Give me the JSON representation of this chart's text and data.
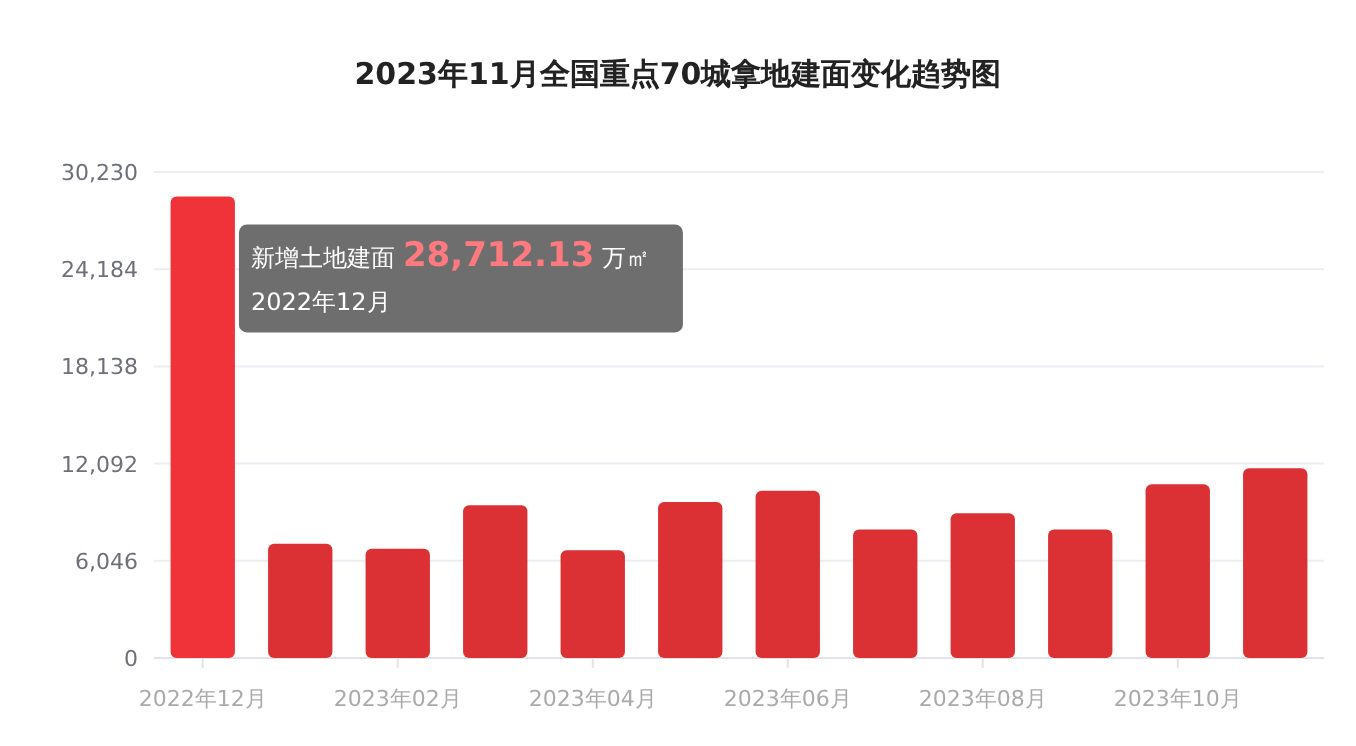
{
  "chart_data": {
    "type": "bar",
    "title": "2023年11月全国重点70城拿地建面变化趋势图",
    "categories": [
      "2022年12月",
      null,
      "2023年02月",
      null,
      "2023年04月",
      null,
      "2023年06月",
      null,
      "2023年08月",
      null,
      "2023年10月",
      null
    ],
    "values": [
      28712.13,
      7100,
      6800,
      9500,
      6700,
      9700,
      10400,
      8000,
      9000,
      8000,
      10800,
      11800
    ],
    "colors": [
      "#ef3338",
      "#db3134",
      "#db3134",
      "#db3134",
      "#db3134",
      "#db3134",
      "#db3134",
      "#db3134",
      "#db3134",
      "#db3134",
      "#db3134",
      "#db3134"
    ],
    "ylim": [
      0,
      30230
    ],
    "yticks": [
      {
        "value": 0,
        "label": "0"
      },
      {
        "value": 6046,
        "label": "6,046"
      },
      {
        "value": 12092,
        "label": "12,092"
      },
      {
        "value": 18138,
        "label": "18,138"
      },
      {
        "value": 24184,
        "label": "24,184"
      },
      {
        "value": 30230,
        "label": "30,230"
      }
    ],
    "grid": "y",
    "annotations": [
      {
        "text": "新增土地建面 28,712.13 万㎡",
        "x": "2022年12月",
        "y": 28712.13
      },
      "2022年12月"
    ]
  }
}
